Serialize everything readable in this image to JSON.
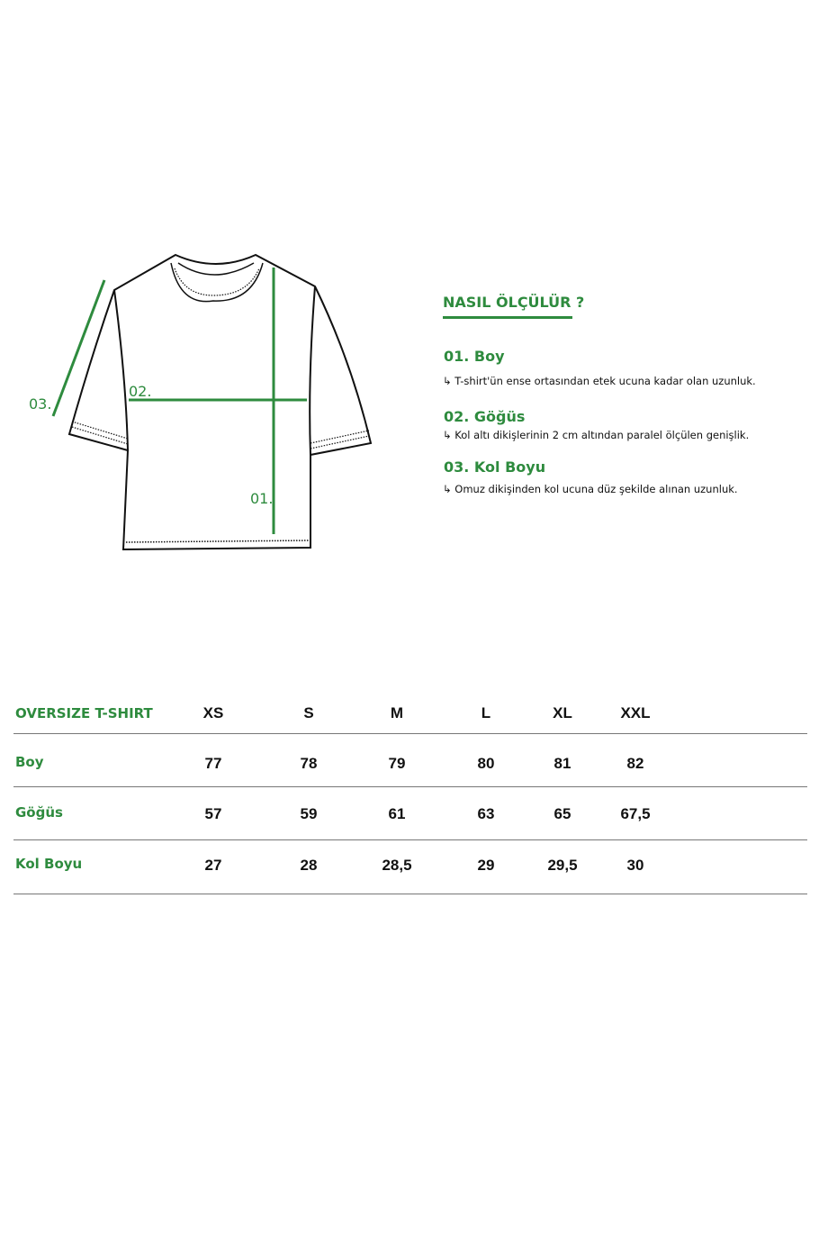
{
  "diagram": {
    "labels": {
      "boy": "01.",
      "gogus": "02.",
      "kol": "03."
    },
    "line_color": "#2e8b3e"
  },
  "howto": {
    "title": "NASIL ÖLÇÜLÜR ?",
    "steps": [
      {
        "title": "01. Boy",
        "arrow": "↳",
        "desc": "T-shirt'ün ense ortasından etek ucuna kadar olan uzunluk."
      },
      {
        "title": "02. Göğüs",
        "arrow": "↳",
        "desc": "Kol altı dikişlerinin 2 cm altından paralel ölçülen genişlik."
      },
      {
        "title": "03. Kol Boyu",
        "arrow": "↳",
        "desc": "Omuz dikişinden kol ucuna düz şekilde alınan uzunluk."
      }
    ]
  },
  "table": {
    "header": "OVERSIZE T-SHIRT",
    "sizes": [
      "XS",
      "S",
      "M",
      "L",
      "XL",
      "XXL"
    ],
    "rows": [
      {
        "label": "Boy",
        "values": [
          "77",
          "78",
          "79",
          "80",
          "81",
          "82"
        ]
      },
      {
        "label": "Göğüs",
        "values": [
          "57",
          "59",
          "61",
          "63",
          "65",
          "67,5"
        ]
      },
      {
        "label": "Kol Boyu",
        "values": [
          "27",
          "28",
          "28,5",
          "29",
          "29,5",
          "30"
        ]
      }
    ]
  }
}
